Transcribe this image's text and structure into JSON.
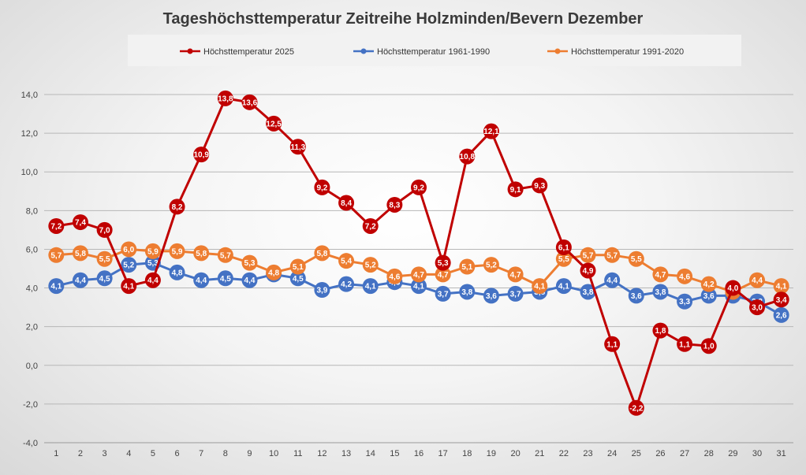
{
  "chart_data": {
    "type": "line",
    "title": "Tageshöchsttemperatur Zeitreihe Holzminden/Bevern Dezember",
    "xlabel": "",
    "ylabel": "",
    "ylim": [
      -4,
      14
    ],
    "yticks": [
      "-4,0",
      "-2,0",
      "0,0",
      "2,0",
      "4,0",
      "6,0",
      "8,0",
      "10,0",
      "12,0",
      "14,0"
    ],
    "x": [
      "1",
      "2",
      "3",
      "4",
      "5",
      "6",
      "7",
      "8",
      "9",
      "10",
      "11",
      "12",
      "13",
      "14",
      "15",
      "16",
      "17",
      "18",
      "19",
      "20",
      "21",
      "22",
      "23",
      "24",
      "25",
      "26",
      "27",
      "28",
      "29",
      "30",
      "31"
    ],
    "series": [
      {
        "name": "Höchsttemperatur 2025",
        "color": "#c00000",
        "values": [
          7.2,
          7.4,
          7.0,
          4.1,
          4.4,
          8.2,
          10.9,
          13.8,
          13.6,
          12.5,
          11.3,
          9.2,
          8.4,
          7.2,
          8.3,
          9.2,
          5.3,
          10.8,
          12.1,
          9.1,
          9.3,
          6.1,
          4.9,
          1.1,
          -2.2,
          1.8,
          1.1,
          1.0,
          4.0,
          3.0,
          3.4
        ]
      },
      {
        "name": "Höchsttemperatur 1961-1990",
        "color": "#4472c4",
        "values": [
          4.1,
          4.4,
          4.5,
          5.2,
          5.3,
          4.8,
          4.4,
          4.5,
          4.4,
          4.7,
          4.5,
          3.9,
          4.2,
          4.1,
          4.3,
          4.1,
          3.7,
          3.8,
          3.6,
          3.7,
          3.8,
          4.1,
          3.8,
          4.4,
          3.6,
          3.8,
          3.3,
          3.6,
          3.6,
          3.3,
          2.6
        ]
      },
      {
        "name": "Höchsttemperatur 1991-2020",
        "color": "#ed7d31",
        "values": [
          5.7,
          5.8,
          5.5,
          6.0,
          5.9,
          5.9,
          5.8,
          5.7,
          5.3,
          4.8,
          5.1,
          5.8,
          5.4,
          5.2,
          4.6,
          4.7,
          4.7,
          5.1,
          5.2,
          4.7,
          4.1,
          5.5,
          5.7,
          5.7,
          5.5,
          4.7,
          4.6,
          4.2,
          3.8,
          4.4,
          4.1
        ]
      }
    ],
    "legend_position": "top",
    "grid": true
  }
}
